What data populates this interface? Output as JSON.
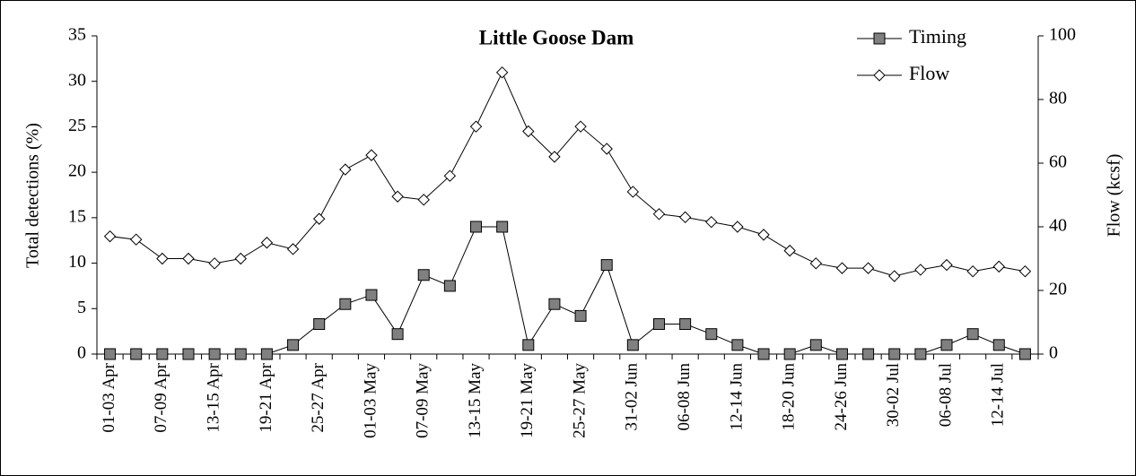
{
  "chart_data": {
    "type": "line",
    "title": "Little Goose Dam",
    "y_label": "Total detections (%)",
    "y2_label": "Flow (kcsf)",
    "categories": [
      "01-03 Apr",
      null,
      "07-09 Apr",
      null,
      "13-15 Apr",
      null,
      "19-21 Apr",
      null,
      "25-27 Apr",
      null,
      "01-03 May",
      null,
      "07-09 May",
      null,
      "13-15 May",
      null,
      "19-21 May",
      null,
      "25-27 May",
      null,
      "31-02 Jun",
      null,
      "06-08 Jun",
      null,
      "12-14 Jun",
      null,
      "18-20 Jun",
      null,
      "24-26 Jun",
      null,
      "30-02 Jul",
      null,
      "06-08 Jul",
      null,
      "12-14 Jul",
      null
    ],
    "series": [
      {
        "name": "Timing",
        "color": "#808080",
        "marker": "square",
        "values": [
          0,
          0,
          0,
          0,
          0,
          0,
          0,
          1,
          3.3,
          5.5,
          6.5,
          2.2,
          8.7,
          7.5,
          14,
          14,
          1,
          5.5,
          4.2,
          9.8,
          1,
          3.3,
          3.3,
          2.2,
          1,
          0,
          0,
          1,
          0,
          0,
          0,
          0,
          1,
          2.2,
          1,
          0
        ]
      },
      {
        "name": "Flow",
        "color": "#ffffff",
        "marker": "diamond",
        "axis": "y2",
        "values": [
          37,
          36,
          30,
          30,
          28.5,
          30,
          35,
          33,
          42.5,
          58,
          62.5,
          49.5,
          48.5,
          56,
          71.5,
          88.5,
          70,
          62,
          71.5,
          64.5,
          51,
          44,
          43,
          41.5,
          40,
          37.5,
          32.5,
          28.5,
          27,
          27,
          24.5,
          26.5,
          28,
          26,
          27.5,
          26
        ]
      }
    ],
    "ylim": [
      0,
      35
    ],
    "yticks": [
      0,
      5,
      10,
      15,
      20,
      25,
      30,
      35
    ],
    "y2lim": [
      0,
      100
    ],
    "y2ticks": [
      0,
      20,
      40,
      60,
      80,
      100
    ],
    "grid": false,
    "legend": "top-right"
  }
}
